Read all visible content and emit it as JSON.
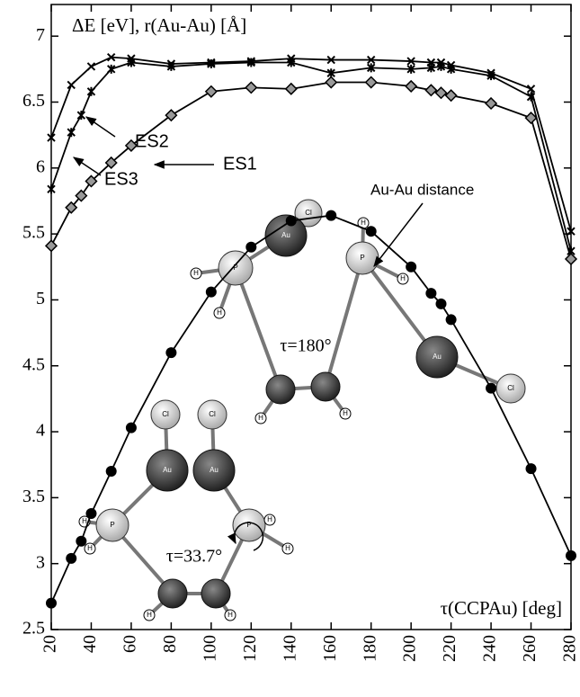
{
  "chart_data": {
    "type": "line",
    "ylabel": "ΔE [eV], r(Au-Au) [Å]",
    "xlabel": "τ(CCPAu) [deg]",
    "xlim": [
      20,
      280
    ],
    "ylim": [
      2.5,
      7.24
    ],
    "xticks": [
      20,
      40,
      60,
      80,
      100,
      120,
      140,
      160,
      180,
      200,
      220,
      240,
      260,
      280
    ],
    "yticks": [
      2.5,
      3,
      3.5,
      4,
      4.5,
      5,
      5.5,
      6,
      6.5,
      7
    ],
    "annotations": [
      "τ=180°",
      "τ=33.7°"
    ],
    "atom_labels": [
      "Au",
      "Cl",
      "P",
      "H"
    ],
    "series": [
      {
        "name": "ES2",
        "color": "#000000",
        "marker": "x",
        "x": [
          20,
          30,
          40,
          50,
          60,
          80,
          100,
          120,
          140,
          160,
          180,
          200,
          210,
          215,
          220,
          240,
          260,
          280
        ],
        "values": [
          6.23,
          6.63,
          6.77,
          6.84,
          6.83,
          6.79,
          6.8,
          6.81,
          6.83,
          6.82,
          6.82,
          6.81,
          6.8,
          6.8,
          6.78,
          6.72,
          6.6,
          5.52
        ]
      },
      {
        "name": "ES3",
        "color": "#000000",
        "marker": "asterisk",
        "x": [
          20,
          30,
          35,
          40,
          50,
          60,
          80,
          100,
          120,
          140,
          160,
          180,
          200,
          210,
          215,
          220,
          240,
          260,
          280
        ],
        "values": [
          5.84,
          6.27,
          6.4,
          6.58,
          6.75,
          6.8,
          6.77,
          6.79,
          6.8,
          6.8,
          6.72,
          6.76,
          6.75,
          6.76,
          6.77,
          6.75,
          6.7,
          6.54,
          5.37
        ]
      },
      {
        "name": "ES1",
        "color": "#000000",
        "marker": "diamond",
        "x": [
          20,
          30,
          35,
          40,
          50,
          60,
          80,
          100,
          120,
          140,
          160,
          180,
          200,
          210,
          215,
          220,
          240,
          260,
          280
        ],
        "values": [
          5.41,
          5.7,
          5.79,
          5.9,
          6.04,
          6.17,
          6.4,
          6.58,
          6.61,
          6.6,
          6.65,
          6.65,
          6.62,
          6.59,
          6.57,
          6.55,
          6.49,
          6.38,
          5.31
        ]
      },
      {
        "name": "Au-Au distance",
        "color": "#000000",
        "marker": "circle",
        "x": [
          20,
          30,
          35,
          40,
          50,
          60,
          80,
          100,
          120,
          140,
          160,
          180,
          200,
          210,
          215,
          220,
          240,
          260,
          280
        ],
        "values": [
          2.7,
          3.04,
          3.17,
          3.38,
          3.7,
          4.03,
          4.6,
          5.06,
          5.4,
          5.6,
          5.64,
          5.52,
          5.25,
          5.05,
          4.97,
          4.85,
          4.33,
          3.72,
          3.06
        ]
      }
    ]
  }
}
